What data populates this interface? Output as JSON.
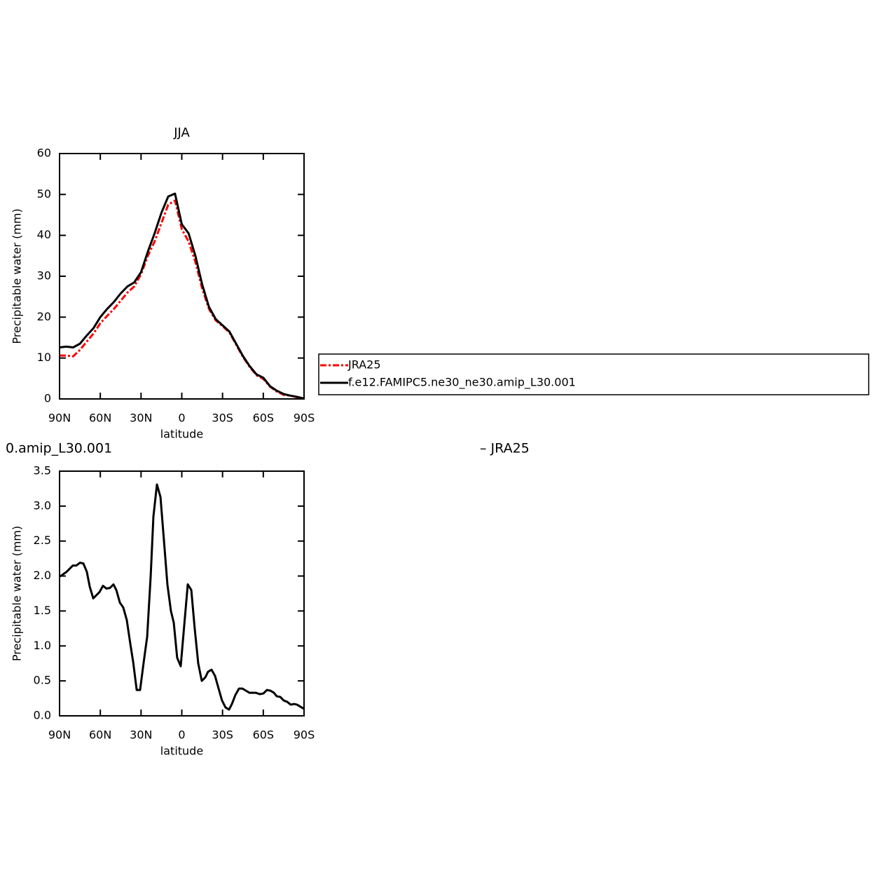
{
  "chart_data": [
    {
      "type": "line",
      "title": "JJA",
      "xlabel": "latitude",
      "ylabel": "Precipitable water (mm)",
      "x": [
        90,
        85,
        80,
        75,
        70,
        65,
        60,
        55,
        50,
        45,
        40,
        35,
        30,
        25,
        20,
        15,
        10,
        5,
        0,
        -5,
        -10,
        -15,
        -20,
        -25,
        -30,
        -35,
        -40,
        -45,
        -50,
        -55,
        -60,
        -65,
        -70,
        -75,
        -80,
        -85,
        -90
      ],
      "series": [
        {
          "name": "JRA25",
          "color": "#ff0000",
          "style": "dashed",
          "values": [
            10.6,
            10.6,
            10.4,
            12,
            14,
            16,
            18.5,
            20.3,
            22,
            24,
            26,
            27.5,
            30.5,
            35,
            38.5,
            43,
            47.5,
            48.5,
            41.5,
            38.5,
            33.5,
            27,
            22,
            19.2,
            17.8,
            16.3,
            13.3,
            10.3,
            7.8,
            5.8,
            4.9,
            3,
            1.8,
            1,
            0.8,
            0.4,
            0.1
          ]
        },
        {
          "name": "f.e12.FAMIPC5.ne30_ne30.amip_L30.001",
          "color": "#000000",
          "style": "solid",
          "values": [
            12.6,
            12.8,
            12.6,
            13.5,
            15.5,
            17.3,
            20,
            22,
            23.7,
            25.8,
            27.5,
            28.5,
            31,
            36,
            40.5,
            45.5,
            49.5,
            50.2,
            42.7,
            40.5,
            35,
            28,
            22.5,
            19.5,
            18,
            16.5,
            13.5,
            10.5,
            8,
            6,
            5.2,
            3.1,
            2,
            1.2,
            0.8,
            0.5,
            0.1
          ]
        }
      ],
      "xlim": [
        90,
        -90
      ],
      "xticks": [
        {
          "value": 90,
          "label": "90N"
        },
        {
          "value": 60,
          "label": "60N"
        },
        {
          "value": 30,
          "label": "30N"
        },
        0,
        {
          "value": -30,
          "label": "30S"
        },
        {
          "value": -60,
          "label": "60S"
        },
        {
          "value": -90,
          "label": "90S"
        }
      ],
      "ylim": [
        0,
        60
      ],
      "yticks": [
        0,
        10,
        20,
        30,
        40,
        50,
        60
      ],
      "legend": "right"
    },
    {
      "type": "line",
      "left_string": "0.amip_L30.001",
      "right_string": "– JRA25",
      "xlabel": "latitude",
      "ylabel": "Precipitable water (mm)",
      "x": [
        90,
        84.8,
        80.2,
        77.6,
        75,
        72.5,
        69.9,
        67.8,
        65.2,
        60.6,
        58,
        55.4,
        52.9,
        50.3,
        48.2,
        45.6,
        43.1,
        40.5,
        37.9,
        35.8,
        33.2,
        30.7,
        28.1,
        25.5,
        22.9,
        20.9,
        18.3,
        15.7,
        13.1,
        10.6,
        8,
        5.9,
        3.4,
        0.8,
        -4.4,
        -7,
        -9.5,
        -12.1,
        -14.7,
        -17.3,
        -19.3,
        -21.9,
        -24.5,
        -27.1,
        -29.6,
        -32.2,
        -34.8,
        -36.9,
        -39.5,
        -42.1,
        -44.7,
        -47.2,
        -49.8,
        -54.4,
        -57.5,
        -60.1,
        -62.7,
        -65.2,
        -67.8,
        -69.9,
        -72.5,
        -75,
        -77.6,
        -80.2,
        -82.8,
        -84.8,
        -87.4,
        -90
      ],
      "series": [
        {
          "color": "#000000",
          "style": "solid",
          "values": [
            1.99,
            2.06,
            2.15,
            2.15,
            2.19,
            2.18,
            2.06,
            1.85,
            1.68,
            1.77,
            1.86,
            1.82,
            1.83,
            1.88,
            1.8,
            1.62,
            1.55,
            1.37,
            1.03,
            0.77,
            0.37,
            0.37,
            0.76,
            1.13,
            2,
            2.85,
            3.31,
            3.13,
            2.5,
            1.88,
            1.5,
            1.33,
            0.83,
            0.71,
            1.88,
            1.8,
            1.25,
            0.75,
            0.5,
            0.55,
            0.63,
            0.66,
            0.57,
            0.39,
            0.22,
            0.12,
            0.09,
            0.17,
            0.3,
            0.39,
            0.39,
            0.36,
            0.33,
            0.33,
            0.31,
            0.32,
            0.37,
            0.36,
            0.33,
            0.28,
            0.27,
            0.22,
            0.2,
            0.16,
            0.17,
            0.16,
            0.13,
            0.1
          ]
        }
      ],
      "xlim": [
        90,
        -90
      ],
      "xticks": [
        {
          "value": 90,
          "label": "90N"
        },
        {
          "value": 60,
          "label": "60N"
        },
        {
          "value": 30,
          "label": "30N"
        },
        0,
        {
          "value": -30,
          "label": "30S"
        },
        {
          "value": -60,
          "label": "60S"
        },
        {
          "value": -90,
          "label": "90S"
        }
      ],
      "ylim": [
        0,
        3.5
      ],
      "yticks": [
        {
          "value": 0,
          "label": "0.0"
        },
        0.5,
        {
          "value": 1,
          "label": "1.0"
        },
        1.5,
        {
          "value": 2,
          "label": "2.0"
        },
        2.5,
        {
          "value": 3,
          "label": "3.0"
        },
        3.5
      ]
    }
  ]
}
